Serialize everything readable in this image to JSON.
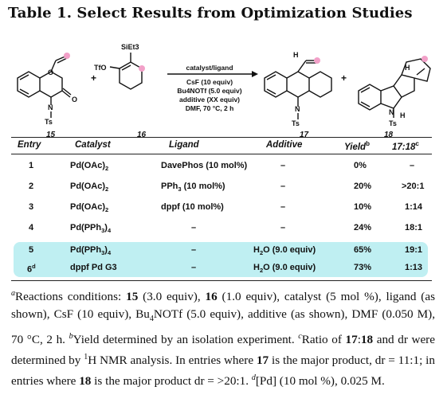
{
  "title": "Table 1. Select Results from Optimization Studies",
  "scheme": {
    "reagent_line1": "catalyst/ligand",
    "reagent_line2": "CsF (10 equiv)",
    "reagent_line3": "Bu4NOTf (5.0 equiv)",
    "reagent_line4": "additive (XX equiv)",
    "reagent_line5": "DMF, 70 °C, 2 h",
    "reagent_line5_sup": "a",
    "label_15": "15",
    "label_16": "16",
    "label_17": "17",
    "label_18": "18",
    "plus": "+",
    "sieti3": "SiEt3",
    "tfo": "TfO",
    "ts": "Ts",
    "n": "N",
    "o": "O",
    "h": "H"
  },
  "table": {
    "headers": {
      "entry": "Entry",
      "catalyst": "Catalyst",
      "ligand": "Ligand",
      "additive": "Additive",
      "yield": "Yield",
      "yield_sup": "b",
      "ratio": "17:18",
      "ratio_sup": "c"
    },
    "rows": [
      {
        "entry": "1",
        "catalyst": "Pd(OAc)2",
        "ligand": "DavePhos (10 mol%)",
        "additive": "–",
        "yield": "0%",
        "ratio": "–"
      },
      {
        "entry": "2",
        "catalyst": "Pd(OAc)2",
        "ligand": "PPh3 (10 mol%)",
        "additive": "–",
        "yield": "20%",
        "ratio": ">20:1"
      },
      {
        "entry": "3",
        "catalyst": "Pd(OAc)2",
        "ligand": "dppf (10 mol%)",
        "additive": "–",
        "yield": "10%",
        "ratio": "1:14"
      },
      {
        "entry": "4",
        "catalyst": "Pd(PPh3)4",
        "ligand": "–",
        "additive": "–",
        "yield": "24%",
        "ratio": "18:1"
      },
      {
        "entry": "5",
        "catalyst": "Pd(PPh3)4",
        "ligand": "–",
        "additive": "H2O (9.0 equiv)",
        "yield": "65%",
        "ratio": "19:1"
      },
      {
        "entry": "6",
        "entry_sup": "d",
        "catalyst": "dppf Pd G3",
        "ligand": "–",
        "additive": "H2O (9.0 equiv)",
        "yield": "73%",
        "ratio": "1:13"
      }
    ]
  },
  "footnotes": {
    "a_mark": "a",
    "a_text": "Reactions conditions: 15 (3.0 equiv), 16 (1.0 equiv), catalyst (5 mol %), ligand (as shown), CsF (10 equiv), Bu4NOTf (5.0 equiv), additive (as shown), DMF (0.050 M), 70 °C, 2 h.",
    "b_mark": "b",
    "b_text": "Yield determined by an isolation experiment.",
    "c_mark": "c",
    "c_text": "Ratio of 17:18 and dr were determined by 1H NMR analysis. In entries where 17 is the major product, dr = 11:1; in entries where 18 is the major product dr = >20:1.",
    "d_mark": "d",
    "d_text": "[Pd] (10 mol %), 0.025 M."
  },
  "colors": {
    "highlight": "#bfeff2",
    "marker": "#f2a0c8"
  }
}
